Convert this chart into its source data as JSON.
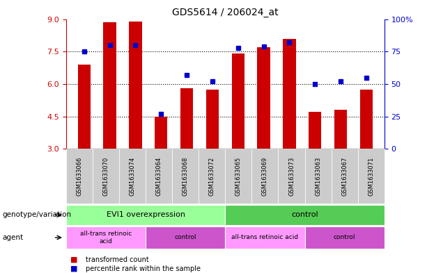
{
  "title": "GDS5614 / 206024_at",
  "samples": [
    "GSM1633066",
    "GSM1633070",
    "GSM1633074",
    "GSM1633064",
    "GSM1633068",
    "GSM1633072",
    "GSM1633065",
    "GSM1633069",
    "GSM1633073",
    "GSM1633063",
    "GSM1633067",
    "GSM1633071"
  ],
  "bar_values": [
    6.9,
    8.85,
    8.9,
    4.5,
    5.8,
    5.75,
    7.4,
    7.7,
    8.1,
    4.7,
    4.8,
    5.75
  ],
  "dot_values": [
    75,
    80,
    80,
    27,
    57,
    52,
    78,
    79,
    82,
    50,
    52,
    55
  ],
  "ylim_left": [
    3,
    9
  ],
  "ylim_right": [
    0,
    100
  ],
  "yticks_left": [
    3,
    4.5,
    6,
    7.5,
    9
  ],
  "yticks_right": [
    0,
    25,
    50,
    75,
    100
  ],
  "bar_color": "#cc0000",
  "dot_color": "#0000cc",
  "bar_width": 0.5,
  "grid_lines": [
    4.5,
    6.0,
    7.5
  ],
  "genotype_groups": [
    {
      "label": "EVI1 overexpression",
      "start": 0,
      "end": 6,
      "color": "#99ff99"
    },
    {
      "label": "control",
      "start": 6,
      "end": 12,
      "color": "#55cc55"
    }
  ],
  "agent_groups": [
    {
      "label": "all-trans retinoic\nacid",
      "start": 0,
      "end": 3,
      "color": "#ff99ff"
    },
    {
      "label": "control",
      "start": 3,
      "end": 6,
      "color": "#cc55cc"
    },
    {
      "label": "all-trans retinoic acid",
      "start": 6,
      "end": 9,
      "color": "#ff99ff"
    },
    {
      "label": "control",
      "start": 9,
      "end": 12,
      "color": "#cc55cc"
    }
  ],
  "legend_bar_label": "transformed count",
  "legend_dot_label": "percentile rank within the sample",
  "row_label_genotype": "genotype/variation",
  "row_label_agent": "agent",
  "background_color": "#ffffff",
  "plot_bg_color": "#ffffff",
  "axis_color_left": "#cc0000",
  "axis_color_right": "#0000cc",
  "sample_bg_color": "#cccccc"
}
